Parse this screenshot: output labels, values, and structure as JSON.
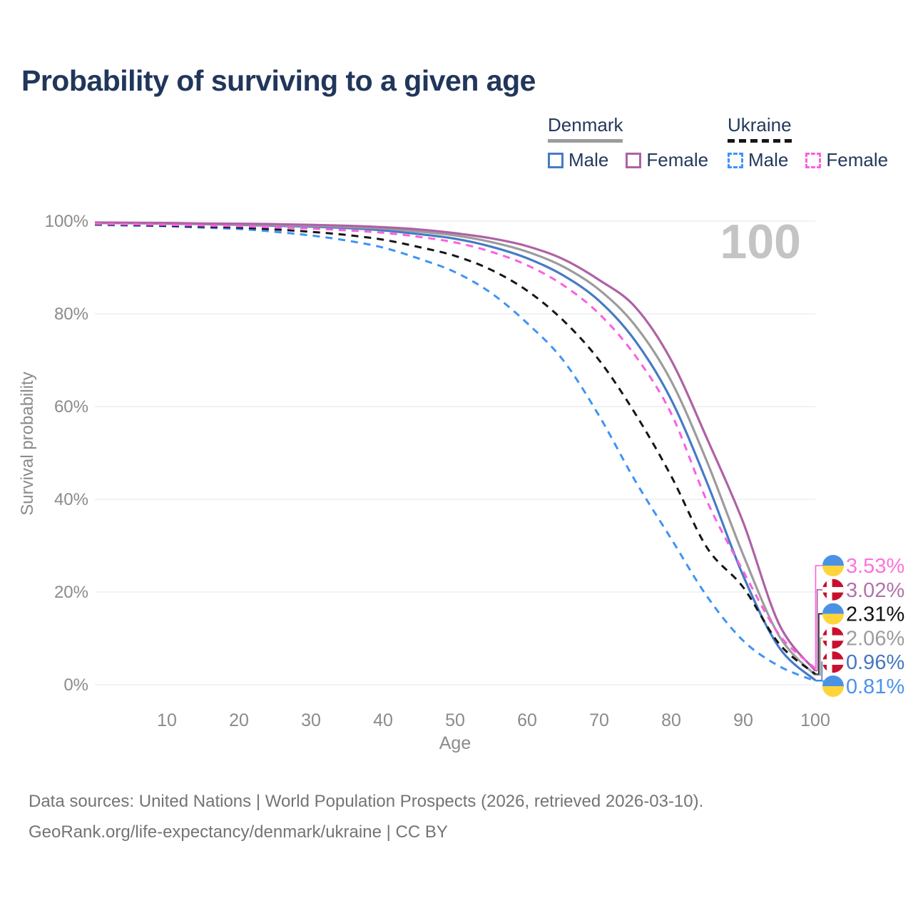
{
  "title": "Probability of surviving to a given age",
  "watermark_age": "100",
  "legend": {
    "groups": [
      {
        "name": "Denmark",
        "underline_style": "solid",
        "underline_color": "#9c9c9c",
        "items": [
          {
            "label": "Male",
            "color": "#467bc4",
            "dashed": false
          },
          {
            "label": "Female",
            "color": "#ae62a5",
            "dashed": false
          }
        ]
      },
      {
        "name": "Ukraine",
        "underline_style": "dashed",
        "underline_color": "#161616",
        "items": [
          {
            "label": "Male",
            "color": "#3d94f6",
            "dashed": true
          },
          {
            "label": "Female",
            "color": "#fb5fe2",
            "dashed": true
          }
        ]
      }
    ]
  },
  "chart_data": {
    "type": "line",
    "title": "Probability of surviving to a given age",
    "xlabel": "Age",
    "ylabel": "Survival probability",
    "xlim": [
      0,
      100
    ],
    "ylim": [
      0,
      100
    ],
    "xticks": [
      10,
      20,
      30,
      40,
      50,
      60,
      70,
      80,
      90,
      100
    ],
    "yticks": [
      0,
      20,
      40,
      60,
      80,
      100
    ],
    "ytick_suffix": "%",
    "grid": "horizontal-only",
    "legend_position": "top-right",
    "x": [
      0,
      5,
      10,
      15,
      20,
      25,
      30,
      35,
      40,
      45,
      50,
      55,
      60,
      65,
      70,
      75,
      80,
      85,
      90,
      95,
      100
    ],
    "series": [
      {
        "name": "Denmark Male",
        "country": "Denmark",
        "sex": "Male",
        "line_style": "solid",
        "color": "#467bc4",
        "flag": "dk",
        "end_label": "0.96%",
        "label_color": "#4677c0",
        "values": [
          99.6,
          99.55,
          99.45,
          99.35,
          99.2,
          99.0,
          98.8,
          98.5,
          98.0,
          97.2,
          96.2,
          94.5,
          92.0,
          88.3,
          82.8,
          74.2,
          61.5,
          43.5,
          23.5,
          8.0,
          0.96
        ]
      },
      {
        "name": "Denmark Both sexes",
        "country": "Denmark",
        "sex": "Both sexes",
        "line_style": "solid",
        "color": "#9c9c9c",
        "flag": "dk",
        "end_label": "2.06%",
        "label_color": "#9c9c9c",
        "values": [
          99.65,
          99.6,
          99.5,
          99.4,
          99.3,
          99.15,
          99.0,
          98.75,
          98.4,
          97.75,
          96.9,
          95.5,
          93.4,
          90.2,
          85.2,
          77.5,
          65.5,
          48.0,
          28.0,
          10.5,
          2.06
        ]
      },
      {
        "name": "Denmark Female",
        "country": "Denmark",
        "sex": "Female",
        "line_style": "solid",
        "color": "#ae62a5",
        "flag": "dk",
        "end_label": "3.02%",
        "label_color": "#b272a9",
        "values": [
          99.7,
          99.65,
          99.6,
          99.5,
          99.45,
          99.35,
          99.2,
          99.0,
          98.7,
          98.2,
          97.4,
          96.3,
          94.6,
          91.8,
          87.3,
          81.5,
          70.0,
          53.0,
          35.0,
          13.0,
          3.02
        ]
      },
      {
        "name": "Ukraine Male",
        "country": "Ukraine",
        "sex": "Male",
        "line_style": "dashed",
        "color": "#3d94f6",
        "flag": "ua",
        "end_label": "0.81%",
        "label_color": "#4b93ea",
        "values": [
          99.2,
          99.05,
          98.9,
          98.6,
          98.3,
          97.7,
          96.9,
          95.8,
          94.3,
          91.9,
          89.0,
          84.5,
          78.0,
          70.0,
          58.0,
          44.0,
          31.5,
          19.0,
          9.5,
          4.0,
          0.81
        ]
      },
      {
        "name": "Ukraine Both sexes",
        "country": "Ukraine",
        "sex": "Both sexes",
        "line_style": "dashed",
        "color": "#151515",
        "flag": "ua",
        "end_label": "2.31%",
        "label_color": "#111111",
        "values": [
          99.3,
          99.15,
          99.0,
          98.8,
          98.6,
          98.2,
          97.7,
          97.0,
          96.0,
          94.4,
          92.5,
          89.5,
          85.0,
          78.6,
          70.0,
          58.5,
          45.0,
          29.5,
          21.0,
          8.8,
          2.31
        ]
      },
      {
        "name": "Ukraine Female",
        "country": "Ukraine",
        "sex": "Female",
        "line_style": "dashed",
        "color": "#fb5fe2",
        "flag": "ua",
        "end_label": "3.53%",
        "label_color": "#fb74dd",
        "values": [
          99.4,
          99.3,
          99.2,
          99.05,
          98.9,
          98.65,
          98.4,
          98.0,
          97.5,
          96.6,
          95.4,
          93.4,
          90.5,
          86.2,
          80.0,
          71.0,
          58.5,
          39.5,
          24.5,
          10.8,
          3.53
        ]
      }
    ]
  },
  "flag_colors": {
    "dk_red": "#c8102e",
    "dk_cross": "#ffffff",
    "ua_blue": "#4b92e5",
    "ua_yellow": "#ffd43b"
  },
  "theme": {
    "title_color": "#21365b",
    "axis_text_color": "#8b8b8b",
    "gridline_color": "#ebebeb",
    "watermark_color": "#c4c4c4"
  },
  "footer": {
    "line1": "Data sources: United Nations | World Population Prospects (2026, retrieved 2026-03-10).",
    "line2": "GeoRank.org/life-expectancy/denmark/ukraine | CC BY"
  }
}
